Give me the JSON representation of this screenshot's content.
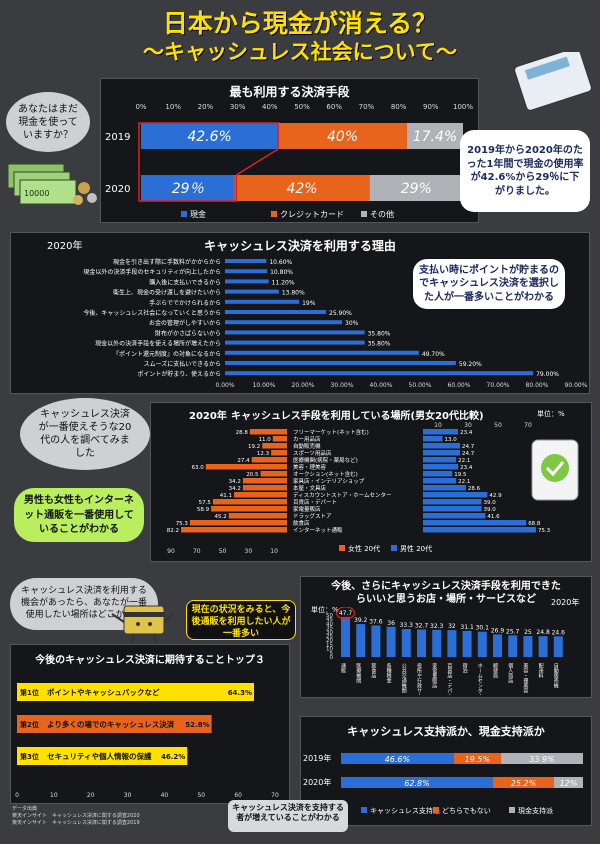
{
  "header": {
    "title": "日本から現金が消える？",
    "subtitle": "〜キャッシュレス社会について〜"
  },
  "colors": {
    "blue": "#2b6fd6",
    "orange": "#e8631c",
    "gray": "#b0b2b7",
    "title": "#ffe100",
    "green": "#b9ef5e"
  },
  "callouts": {
    "q1": "あなたはまだ現金を使っていますか？",
    "chart1_note": "2019年から2020年のたった1年間で現金の使用率が42.6%から29％に下がりました。",
    "reason_note": "支払い時にポイントが貯まるのでキャッシュレス決済を選択した人が一番多いことがわかる",
    "q2": "キャッシュレス決済が一番使えそうな20代の人を調べてみました",
    "green_note": "男性も女性もインターネット通販を一番使用していることがわかる",
    "q3": "キャッシュレス決済を利用する機会があったら、あなたが一番使用したい場所はどこかな？",
    "cheer_note": "現在の状況をみると、今後通販を利用したい人が一番多い",
    "bottom_note": "キャッシュレス決済を支持する者が増えていることがわかる"
  },
  "chart_data": [
    {
      "type": "bar",
      "title": "最も利用する決済手段",
      "categories": [
        "2019",
        "2020"
      ],
      "series": [
        {
          "name": "現金",
          "values": [
            42.6,
            29
          ]
        },
        {
          "name": "クレジットカード",
          "values": [
            40,
            42
          ]
        },
        {
          "name": "その他",
          "values": [
            17.4,
            29
          ]
        }
      ],
      "value_labels": [
        [
          "42.6%",
          "40%",
          "17.4%"
        ],
        [
          "29％",
          "42%",
          "29%"
        ]
      ],
      "ticks": [
        "0%",
        "10%",
        "20%",
        "30%",
        "40%",
        "50%",
        "60%",
        "70%",
        "80%",
        "90%",
        "100%"
      ]
    },
    {
      "type": "bar",
      "title": "キャッシュレス決済を利用する理由",
      "year": "2020年",
      "categories": [
        "現金を引き出す際に手数料がかからから",
        "現金以外の決済手段のセキュリティが向上したから",
        "購入後に支払いできるから",
        "衛生上、現金の受け渡しを避けたいから",
        "手ぶらででかけられるから",
        "今後、キャッシュレス社会になっていくと思うから",
        "お金の管理がしやすいから",
        "財布がかさばらないから",
        "現金以外の決済手段を使える場所が増えたから",
        "『ポイント還元制度』の対象になるから",
        "スムーズに支払いできるから",
        "ポイントが貯まり、使えるから"
      ],
      "values": [
        10.6,
        10.8,
        11.2,
        13.8,
        19,
        25.9,
        30,
        35.8,
        35.8,
        49.7,
        59.2,
        79.0
      ],
      "value_labels": [
        "10.60%",
        "10.80%",
        "11.20%",
        "13.80%",
        "19%",
        "25.90%",
        "30%",
        "35.80%",
        "35.80%",
        "49.70%",
        "59.20%",
        "79.00%"
      ],
      "ticks": [
        "0.00%",
        "10.00%",
        "20.00%",
        "30.00%",
        "40.00%",
        "50.00%",
        "60.00%",
        "70.00%",
        "80.00%",
        "90.00%"
      ]
    },
    {
      "type": "bar",
      "title": "キャッシュレス手段を利用している場所(男女20代比較)",
      "year": "2020年",
      "unit": "単位：%",
      "categories": [
        "フリーマーケット(ネット含む)",
        "カー用品店",
        "自動販売機",
        "スポーツ用品店",
        "医療機関(病院・薬局など)",
        "美容・理美容",
        "オークション(ネット含む)",
        "家具店・インテリアショップ",
        "本屋・文具店",
        "ディスカウントストア・ホームセンター",
        "百貨店・デパート",
        "家電量販店",
        "ドラッグストア",
        "飲食店",
        "インターネット通販"
      ],
      "series": [
        {
          "name": "女性 20代",
          "values": [
            28.8,
            11.0,
            19.2,
            12.3,
            27.4,
            63.0,
            20.5,
            34.2,
            34.2,
            41.1,
            57.5,
            58.9,
            45.2,
            75.3,
            82.2
          ]
        },
        {
          "name": "男性 20代",
          "values": [
            23.4,
            13.0,
            24.7,
            24.7,
            22.1,
            23.4,
            19.5,
            22.1,
            28.6,
            42.9,
            39.0,
            39.0,
            41.6,
            68.8,
            75.3
          ]
        }
      ],
      "left_ticks": [
        "90",
        "70",
        "50",
        "30",
        "10"
      ],
      "right_ticks": [
        "10",
        "30",
        "50",
        "70"
      ]
    },
    {
      "type": "bar",
      "title": "今後、さらにキャッシュレス決済手段を利用できたらいいと思うお店・場所・サービスなど",
      "year": "2020年",
      "unit": "単位：%",
      "categories": [
        "通販",
        "医療機関",
        "飲食店",
        "各種税金",
        "公共交通機関",
        "役所や行政サービス",
        "家電量販店",
        "百貨店・デパート",
        "宿泊",
        "ホームセンター",
        "郵便局",
        "個人商店",
        "美容・理美容",
        "配達料",
        "自動販売機"
      ],
      "values": [
        47.7,
        39.2,
        37.6,
        36,
        33.3,
        32.7,
        32.3,
        32,
        31.1,
        30.1,
        26.9,
        25.7,
        25,
        24.8,
        24.6
      ],
      "ylim": [
        0,
        50
      ],
      "ticks": [
        "0",
        "5",
        "10",
        "15",
        "20",
        "25",
        "30",
        "35",
        "40",
        "45",
        "50"
      ]
    },
    {
      "type": "bar",
      "title": "今後のキャッシュレス決済に期待することトップ３",
      "categories": [
        "第1位",
        "第2位",
        "第3位"
      ],
      "labels": [
        "ポイントやキャッシュバックなど",
        "より多くの場でのキャッシュレス決済",
        "セキュリティや個人情報の保護"
      ],
      "values": [
        64.3,
        52.8,
        46.2
      ],
      "value_labels": [
        "64.3%",
        "52.8%",
        "46.2%"
      ],
      "ticks": [
        "0",
        "10",
        "20",
        "30",
        "40",
        "50",
        "60",
        "70"
      ]
    },
    {
      "type": "bar",
      "title": "キャッシュレス支持派か、現金支持派か",
      "categories": [
        "2019年",
        "2020年"
      ],
      "series": [
        {
          "name": "キャッシュレス支持派",
          "values": [
            46.6,
            62.8
          ]
        },
        {
          "name": "どちらでもない",
          "values": [
            19.5,
            25.2
          ]
        },
        {
          "name": "現金支持派",
          "values": [
            33.9,
            12
          ]
        }
      ],
      "value_labels": [
        [
          "46.6%",
          "19.5%",
          "33.9%"
        ],
        [
          "62.8%",
          "25.2%",
          "12%"
        ]
      ]
    }
  ],
  "sources": {
    "label": "データ出典",
    "line1": "楽天インサイト　キャッシュレス決済に関する調査2020",
    "line2": "楽天インサイト　キャッシュレス決済に関する調査2019"
  }
}
